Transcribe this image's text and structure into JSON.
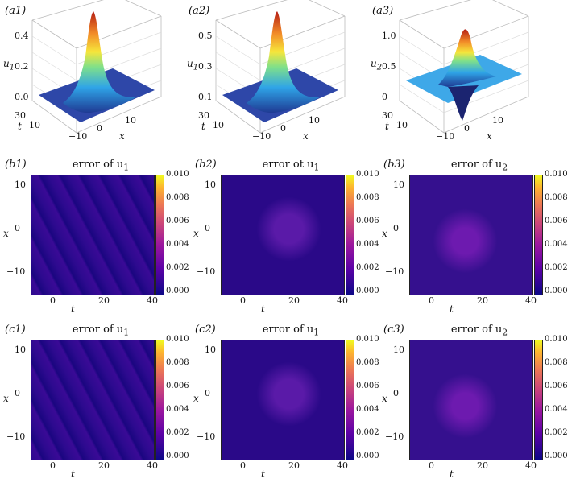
{
  "figure": {
    "panels_3d": [
      {
        "id": "a1",
        "label": "(a1)",
        "zlabel": "u",
        "zsub": "1",
        "zticks": [
          "0.4",
          "0.2",
          "0.0"
        ],
        "tticks": [
          "30",
          "10"
        ],
        "tlabel": "t",
        "xticks": [
          "−10",
          "0",
          "10"
        ],
        "xlabel": "x",
        "kind": "bright"
      },
      {
        "id": "a2",
        "label": "(a2)",
        "zlabel": "u",
        "zsub": "1",
        "zticks": [
          "0.5",
          "0.3",
          "0.1"
        ],
        "tticks": [
          "30",
          "10"
        ],
        "tlabel": "t",
        "xticks": [
          "−10",
          "0",
          "10"
        ],
        "xlabel": "x",
        "kind": "bright"
      },
      {
        "id": "a3",
        "label": "(a3)",
        "zlabel": "u",
        "zsub": "2",
        "zticks": [
          "1.0",
          "0.5",
          "0"
        ],
        "tticks": [
          "30",
          "10"
        ],
        "tlabel": "t",
        "xticks": [
          "−10",
          "0",
          "10"
        ],
        "xlabel": "x",
        "kind": "dipole"
      }
    ],
    "panels_err": [
      {
        "id": "b1",
        "label": "(b1)",
        "title": "error of u",
        "sub": "1",
        "row": 1,
        "col": 0
      },
      {
        "id": "b2",
        "label": "(b2)",
        "title": "error ot u",
        "sub": "1",
        "row": 1,
        "col": 1
      },
      {
        "id": "b3",
        "label": "(b3)",
        "title": "error of u",
        "sub": "2",
        "row": 1,
        "col": 2
      },
      {
        "id": "c1",
        "label": "(c1)",
        "title": "error of u",
        "sub": "1",
        "row": 2,
        "col": 0
      },
      {
        "id": "c2",
        "label": "(c2)",
        "title": "error of u",
        "sub": "1",
        "row": 2,
        "col": 1
      },
      {
        "id": "c3",
        "label": "(c3)",
        "title": "error of u",
        "sub": "2",
        "row": 2,
        "col": 2
      }
    ],
    "err_axes": {
      "yticks": [
        "10",
        "0",
        "−10"
      ],
      "xticks": [
        "0",
        "20",
        "40"
      ],
      "ylabel": "x",
      "xlabel": "t"
    },
    "colorbar": {
      "ticks": [
        "0.010",
        "0.008",
        "0.006",
        "0.004",
        "0.002",
        "0.000"
      ],
      "colormap": "plasma"
    }
  },
  "chart_data": [
    {
      "type": "surface",
      "panel": "a1",
      "zlabel": "u1",
      "zlim": [
        0,
        0.5
      ],
      "peak_value": 0.5,
      "x_range": [
        -15,
        15
      ],
      "t_range": [
        -10,
        40
      ]
    },
    {
      "type": "surface",
      "panel": "a2",
      "zlabel": "u1",
      "zlim": [
        0,
        0.55
      ],
      "peak_value": 0.55,
      "x_range": [
        -15,
        15
      ],
      "t_range": [
        -10,
        40
      ]
    },
    {
      "type": "surface",
      "panel": "a3",
      "zlabel": "u2",
      "zlim": [
        -0.5,
        1.2
      ],
      "peak_value": 1.1,
      "x_range": [
        -15,
        15
      ],
      "t_range": [
        -10,
        40
      ]
    },
    {
      "type": "heatmap",
      "panel": "b1",
      "title": "error of u1",
      "xlabel": "t",
      "ylabel": "x",
      "xlim": [
        -10,
        40
      ],
      "ylim": [
        -15,
        15
      ],
      "clim": [
        0,
        0.01
      ]
    },
    {
      "type": "heatmap",
      "panel": "b2",
      "title": "error ot u1",
      "xlabel": "t",
      "ylabel": "x",
      "xlim": [
        -10,
        40
      ],
      "ylim": [
        -15,
        15
      ],
      "clim": [
        0,
        0.01
      ]
    },
    {
      "type": "heatmap",
      "panel": "b3",
      "title": "error of u2",
      "xlabel": "t",
      "ylabel": "x",
      "xlim": [
        -10,
        40
      ],
      "ylim": [
        -15,
        15
      ],
      "clim": [
        0,
        0.01
      ]
    },
    {
      "type": "heatmap",
      "panel": "c1",
      "title": "error of u1",
      "xlabel": "t",
      "ylabel": "x",
      "xlim": [
        -10,
        40
      ],
      "ylim": [
        -15,
        15
      ],
      "clim": [
        0,
        0.01
      ]
    },
    {
      "type": "heatmap",
      "panel": "c2",
      "title": "error of u1",
      "xlabel": "t",
      "ylabel": "x",
      "xlim": [
        -10,
        40
      ],
      "ylim": [
        -15,
        15
      ],
      "clim": [
        0,
        0.01
      ]
    },
    {
      "type": "heatmap",
      "panel": "c3",
      "title": "error of u2",
      "xlabel": "t",
      "ylabel": "x",
      "xlim": [
        -10,
        40
      ],
      "ylim": [
        -15,
        15
      ],
      "clim": [
        0,
        0.01
      ]
    }
  ]
}
